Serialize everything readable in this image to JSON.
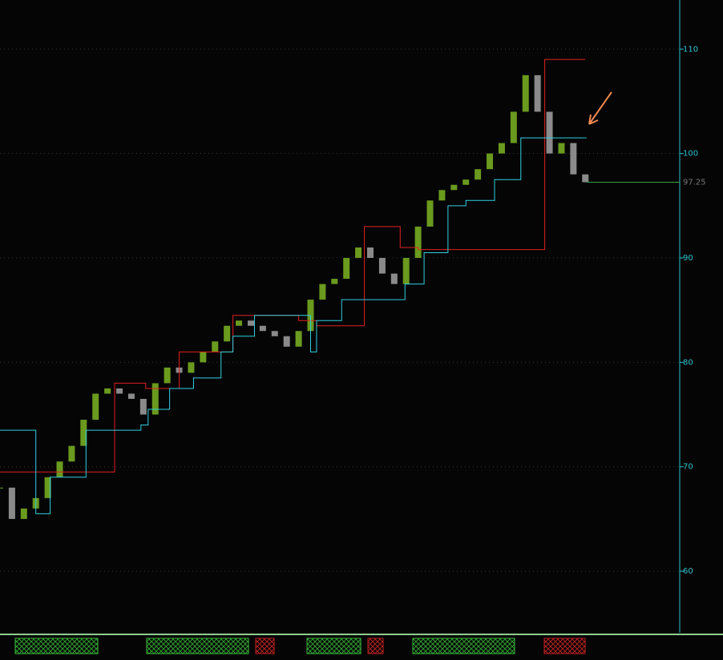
{
  "chart_data": {
    "type": "candlestick",
    "ylim": [
      54.1,
      114.7
    ],
    "yticks": [
      60,
      70,
      80,
      90,
      100,
      110
    ],
    "grid": true,
    "xlim": [
      0,
      56.9
    ],
    "values": [
      68,
      65,
      66,
      67,
      69,
      70.5,
      72,
      74.5,
      77,
      77.5,
      77,
      76.5,
      75,
      78,
      79.5,
      79,
      80,
      81,
      82,
      83.5,
      84,
      83.5,
      83,
      82.5,
      81.5,
      83,
      86,
      87.5,
      88,
      90,
      91,
      90,
      88.5,
      87.5,
      90,
      93,
      95.5,
      96.5,
      97,
      97.5,
      98.5,
      100,
      101,
      104,
      107.5,
      104,
      100,
      101,
      98,
      97.25
    ],
    "up_color": "#6a9a1e",
    "down_color": "#8a8a8a",
    "series": [
      {
        "color": "#e02020",
        "x": [
          0,
          9.6,
          12.2,
          15,
          19.5,
          25,
          26.5,
          30.5,
          33.5,
          35,
          45.6,
          49
        ],
        "values": [
          69.5,
          78,
          77.5,
          81,
          84.5,
          84,
          83.5,
          93,
          91,
          90.8,
          109,
          109
        ]
      },
      {
        "color": "#30d0e0",
        "x": [
          0,
          3,
          4.2,
          7.2,
          11.8,
          12.4,
          14.2,
          16.2,
          18.5,
          19.5,
          21.3,
          26,
          26.5,
          28.6,
          33.9,
          35.5,
          37.5,
          39,
          41.4,
          43.6,
          49.1
        ],
        "values": [
          73.5,
          65.5,
          69,
          73.5,
          74,
          75.5,
          77.5,
          78.5,
          81,
          82.5,
          84.5,
          81,
          84,
          86,
          87.5,
          90.5,
          95,
          95.5,
          97.5,
          101.5,
          101.5
        ]
      }
    ],
    "last_price": 97.25,
    "last_color": "#3aa04a"
  }
}
